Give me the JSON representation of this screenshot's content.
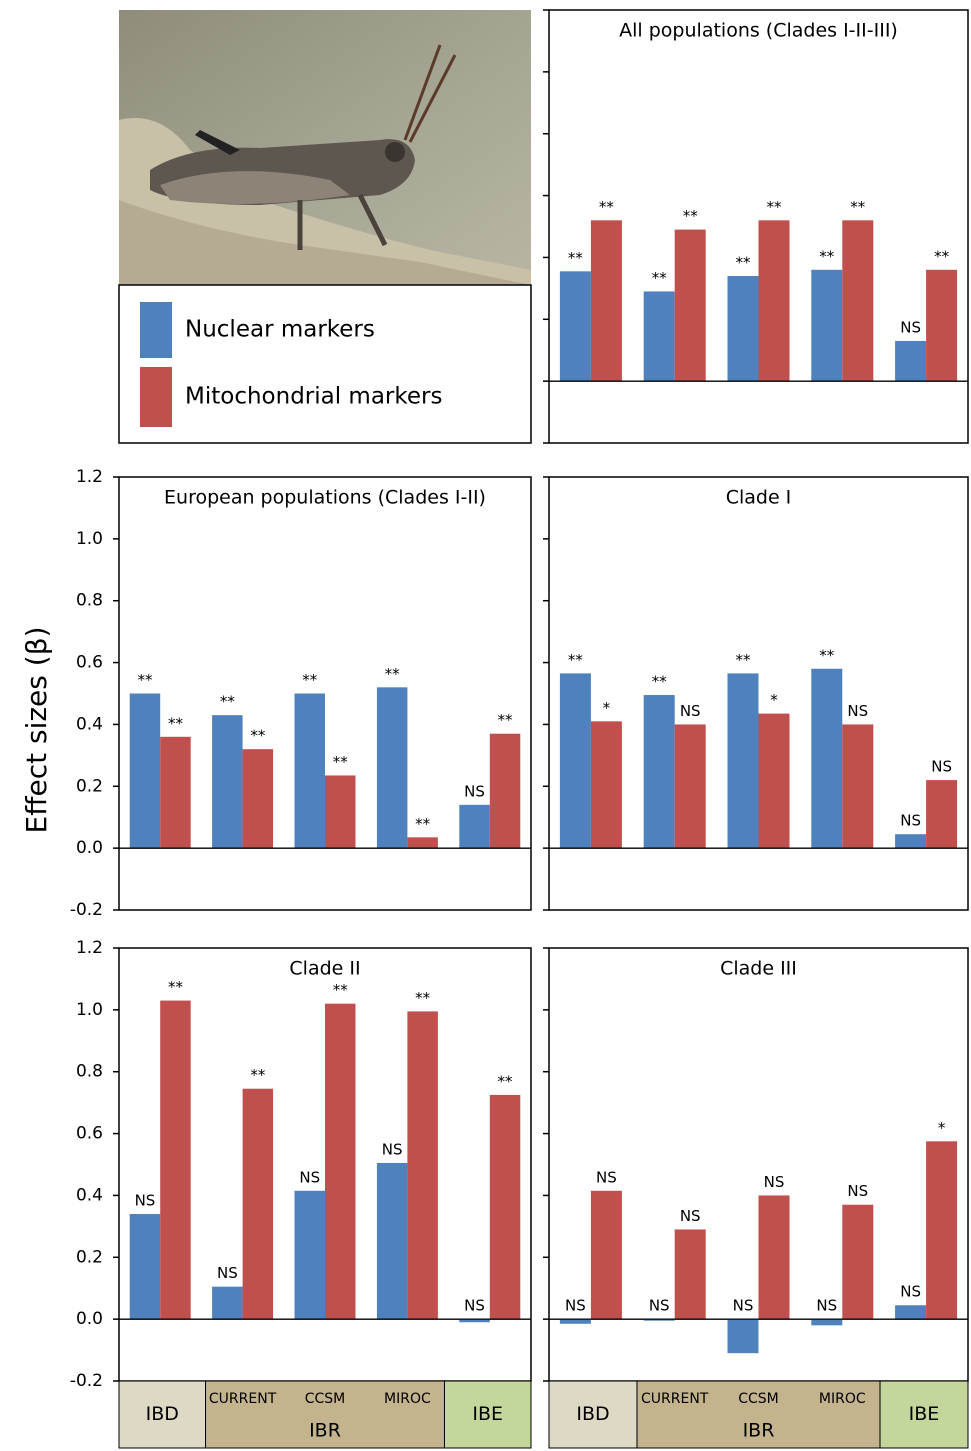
{
  "shared": {
    "ylabel": "Effect sizes (β)",
    "categories": [
      "IBD",
      "CURRENT",
      "CCSM",
      "MIROC",
      "IBE"
    ],
    "category_group": "IBR"
  },
  "chart_data": [
    {
      "type": "bar",
      "title": "All populations (Clades I-II-III)",
      "ylim": [
        -0.2,
        1.2
      ],
      "yticks": [
        -0.2,
        0.0,
        0.2,
        0.4,
        0.6,
        0.8,
        1.0,
        1.2
      ],
      "tick_labels": false,
      "series": [
        {
          "name": "Nuclear markers",
          "color": "#4f81bd",
          "values": [
            0.355,
            0.29,
            0.34,
            0.36,
            0.13
          ],
          "significance": [
            "**",
            "**",
            "**",
            "**",
            "NS"
          ]
        },
        {
          "name": "Mitochondrial markers",
          "color": "#c0504d",
          "values": [
            0.52,
            0.49,
            0.52,
            0.52,
            0.36
          ],
          "significance": [
            "**",
            "**",
            "**",
            "**",
            "**"
          ]
        }
      ]
    },
    {
      "type": "bar",
      "title": "European populations (Clades I-II)",
      "ylim": [
        -0.2,
        1.2
      ],
      "yticks": [
        {
          "value": -0.2,
          "label": "-0.2"
        },
        {
          "value": 0,
          "label": "0.0"
        },
        0.2,
        0.4,
        0.6,
        0.8,
        {
          "value": 1,
          "label": "1.0"
        },
        1.2
      ],
      "tick_labels": true,
      "series": [
        {
          "name": "Nuclear markers",
          "color": "#4f81bd",
          "values": [
            0.5,
            0.43,
            0.5,
            0.52,
            0.14
          ],
          "significance": [
            "**",
            "**",
            "**",
            "**",
            "NS"
          ]
        },
        {
          "name": "Mitochondrial markers",
          "color": "#c0504d",
          "values": [
            0.36,
            0.32,
            0.235,
            0.035,
            0.37
          ],
          "significance": [
            "**",
            "**",
            "**",
            "**",
            "**"
          ]
        }
      ]
    },
    {
      "type": "bar",
      "title": "Clade I",
      "ylim": [
        -0.2,
        1.2
      ],
      "yticks": [
        -0.2,
        0.0,
        0.2,
        0.4,
        0.6,
        0.8,
        1.0,
        1.2
      ],
      "tick_labels": false,
      "series": [
        {
          "name": "Nuclear markers",
          "color": "#4f81bd",
          "values": [
            0.565,
            0.495,
            0.565,
            0.58,
            0.045
          ],
          "significance": [
            "**",
            "**",
            "**",
            "**",
            "NS"
          ]
        },
        {
          "name": "Mitochondrial markers",
          "color": "#c0504d",
          "values": [
            0.41,
            0.4,
            0.435,
            0.4,
            0.22
          ],
          "significance": [
            "*",
            "NS",
            "*",
            "NS",
            "NS"
          ]
        }
      ]
    },
    {
      "type": "bar",
      "title": "Clade II",
      "ylim": [
        -0.2,
        1.2
      ],
      "yticks": [
        {
          "value": -0.2,
          "label": "-0.2"
        },
        {
          "value": 0,
          "label": "0.0"
        },
        0.2,
        0.4,
        0.6,
        0.8,
        {
          "value": 1,
          "label": "1.0"
        },
        1.2
      ],
      "tick_labels": true,
      "series": [
        {
          "name": "Nuclear markers",
          "color": "#4f81bd",
          "values": [
            0.34,
            0.105,
            0.415,
            0.505,
            -0.01
          ],
          "significance": [
            "NS",
            "NS",
            "NS",
            "NS",
            "NS"
          ]
        },
        {
          "name": "Mitochondrial markers",
          "color": "#c0504d",
          "values": [
            1.03,
            0.745,
            1.02,
            0.995,
            0.725
          ],
          "significance": [
            "**",
            "**",
            "**",
            "**",
            "**"
          ]
        }
      ]
    },
    {
      "type": "bar",
      "title": "Clade III",
      "ylim": [
        -0.2,
        1.2
      ],
      "yticks": [
        -0.2,
        0.0,
        0.2,
        0.4,
        0.6,
        0.8,
        1.0,
        1.2
      ],
      "tick_labels": false,
      "series": [
        {
          "name": "Nuclear markers",
          "color": "#4f81bd",
          "values": [
            -0.015,
            -0.005,
            -0.11,
            -0.02,
            0.045
          ],
          "significance": [
            "NS",
            "NS",
            "NS",
            "NS",
            "NS"
          ]
        },
        {
          "name": "Mitochondrial markers",
          "color": "#c0504d",
          "values": [
            0.415,
            0.29,
            0.4,
            0.37,
            0.575
          ],
          "significance": [
            "NS",
            "NS",
            "NS",
            "NS",
            "*"
          ]
        }
      ]
    }
  ]
}
